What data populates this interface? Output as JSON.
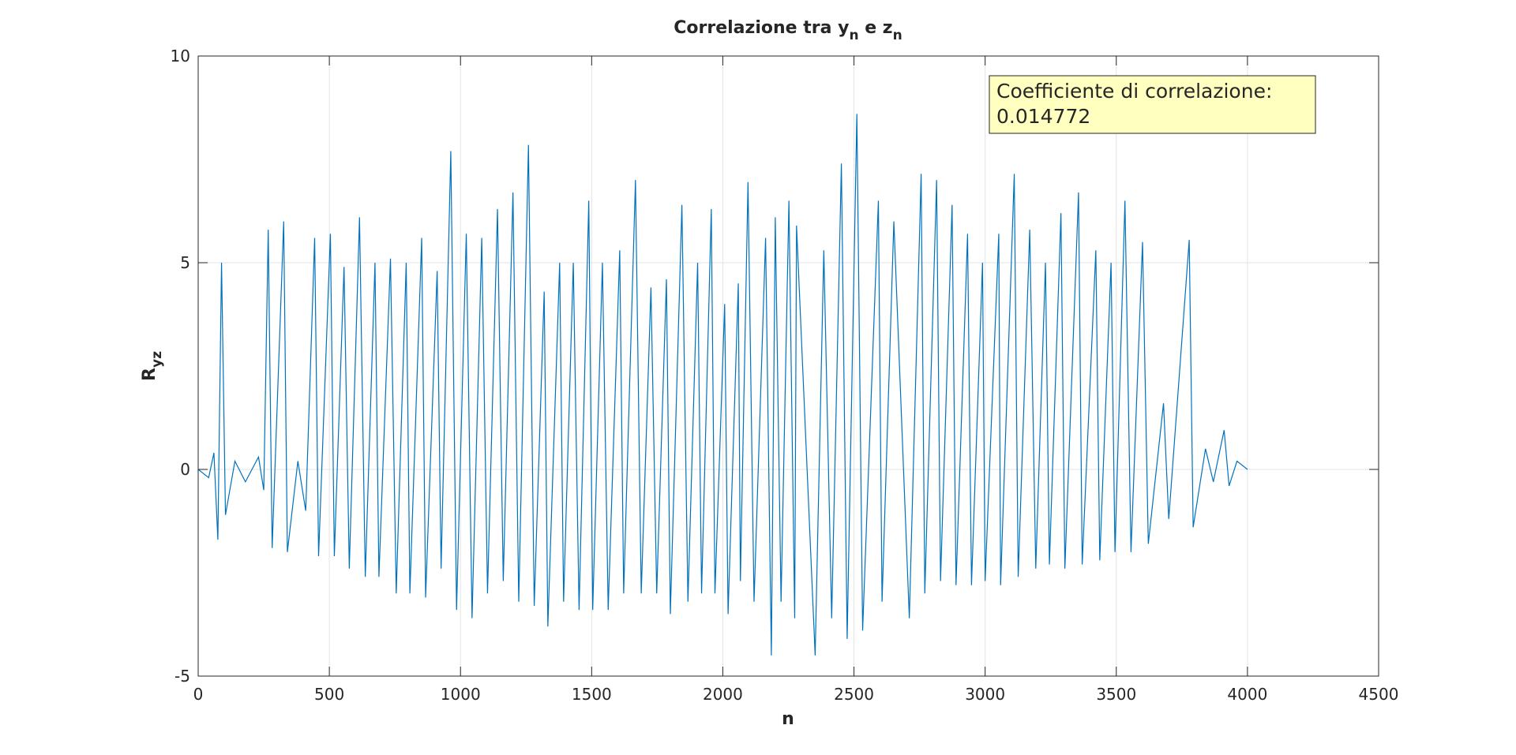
{
  "chart_data": {
    "type": "line",
    "title": [
      "Correlazione tra y",
      "n",
      " e z",
      "n"
    ],
    "xlabel": "n",
    "ylabel": [
      "R",
      "yz"
    ],
    "annotation": [
      "Coefficiente di correlazione:",
      "0.014772"
    ],
    "xlim": [
      0,
      4500
    ],
    "xticks": [
      0,
      500,
      1000,
      1500,
      2000,
      2500,
      3000,
      3500,
      4000,
      4500
    ],
    "ylim": [
      -5,
      10
    ],
    "yticks": [
      -5,
      0,
      5,
      10
    ],
    "grid": true,
    "series": [
      {
        "color": "#0072bd",
        "x": [
          0,
          40,
          60,
          75,
          89,
          104,
          140,
          180,
          230,
          250,
          267,
          282,
          326,
          340,
          380,
          410,
          444,
          459,
          504,
          519,
          556,
          576,
          615,
          637,
          674,
          689,
          733,
          755,
          793,
          807,
          852,
          867,
          911,
          926,
          963,
          985,
          1022,
          1044,
          1081,
          1103,
          1141,
          1163,
          1200,
          1222,
          1259,
          1281,
          1319,
          1333,
          1378,
          1393,
          1430,
          1452,
          1489,
          1504,
          1541,
          1563,
          1607,
          1622,
          1667,
          1689,
          1726,
          1748,
          1785,
          1800,
          1844,
          1867,
          1904,
          1919,
          1956,
          1970,
          2007,
          2020,
          2059,
          2067,
          2096,
          2119,
          2163,
          2185,
          2200,
          2222,
          2252,
          2274,
          2281,
          2352,
          2385,
          2415,
          2452,
          2474,
          2511,
          2533,
          2593,
          2607,
          2652,
          2711,
          2756,
          2770,
          2815,
          2830,
          2874,
          2889,
          2933,
          2948,
          2990,
          3000,
          3052,
          3059,
          3111,
          3126,
          3170,
          3193,
          3230,
          3245,
          3289,
          3304,
          3356,
          3370,
          3422,
          3437,
          3480,
          3495,
          3533,
          3556,
          3600,
          3622,
          3680,
          3700,
          3778,
          3793,
          3840,
          3870,
          3911,
          3930,
          3960,
          4000
        ],
        "values": [
          0,
          -0.2,
          0.4,
          -1.7,
          5.0,
          -1.1,
          0.2,
          -0.3,
          0.3,
          -0.5,
          5.8,
          -1.9,
          6.0,
          -2.0,
          0.2,
          -1.0,
          5.6,
          -2.1,
          5.7,
          -2.1,
          4.9,
          -2.4,
          6.1,
          -2.6,
          5.0,
          -2.6,
          5.1,
          -3.0,
          5.0,
          -3.0,
          5.6,
          -3.1,
          4.8,
          -2.4,
          7.7,
          -3.4,
          5.7,
          -3.6,
          5.6,
          -3.0,
          6.3,
          -2.7,
          6.7,
          -3.2,
          7.85,
          -3.3,
          4.3,
          -3.8,
          5.0,
          -3.2,
          5.0,
          -3.4,
          6.5,
          -3.4,
          5.0,
          -3.4,
          5.3,
          -3.0,
          7.0,
          -3.0,
          4.4,
          -3.0,
          4.6,
          -3.5,
          6.4,
          -3.2,
          5.0,
          -3.0,
          6.3,
          -3.0,
          4.0,
          -3.5,
          4.5,
          -2.7,
          6.95,
          -3.2,
          5.6,
          -4.5,
          6.1,
          -3.2,
          6.5,
          -3.6,
          5.9,
          -4.5,
          5.3,
          -3.6,
          7.4,
          -4.1,
          8.6,
          -3.9,
          6.5,
          -3.2,
          6.0,
          -3.6,
          7.15,
          -3.0,
          7.0,
          -2.7,
          6.4,
          -2.8,
          5.7,
          -2.8,
          5.0,
          -2.7,
          5.7,
          -2.8,
          7.15,
          -2.6,
          5.8,
          -2.4,
          5.0,
          -2.3,
          6.2,
          -2.4,
          6.7,
          -2.3,
          5.3,
          -2.2,
          5.0,
          -2.0,
          6.5,
          -2.0,
          5.5,
          -1.8,
          1.6,
          -1.2,
          5.55,
          -1.4,
          0.5,
          -0.3,
          0.95,
          -0.4,
          0.2,
          0
        ]
      }
    ]
  }
}
